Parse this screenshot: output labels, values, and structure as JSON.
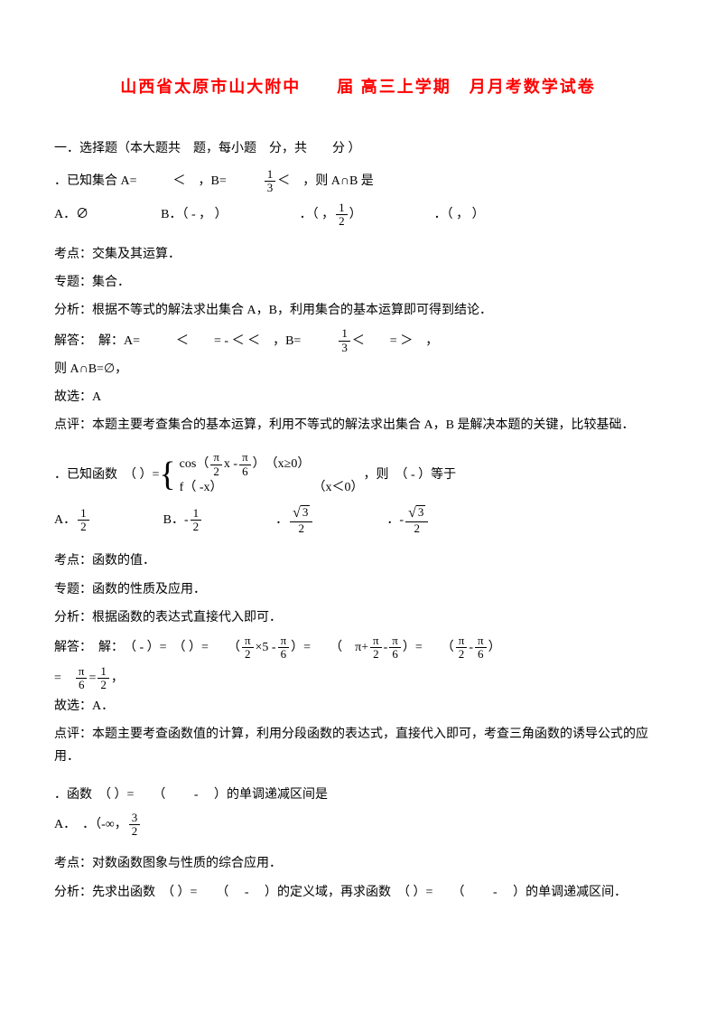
{
  "title": "山西省太原市山大附中　　届 高三上学期　月月考数学试卷",
  "section1_heading": "一．选择题（本大题共　题，每小题　分，共　　分 ）",
  "q1": {
    "stem_prefix": "．已知集合 A=",
    "stem_mid1": "＜　，B=",
    "stem_mid2": "＜　，则 A∩B 是",
    "frac1_num": "1",
    "frac1_den": "3",
    "optA": "A．∅",
    "optB": "B．（ - ， ）",
    "optC_prefix": "．（ ，",
    "optC_suffix": "）",
    "optC_num": "1",
    "optC_den": "2",
    "optD": "．（ ， ）"
  },
  "a1": {
    "l1": "考点：交集及其运算．",
    "l2": "专题：集合．",
    "l3": "分析：根据不等式的解法求出集合 A，B，利用集合的基本运算即可得到结论．",
    "l4_prefix": "解答：　解：A=",
    "l4_mid": "＜　　= - ＜ ＜　，B=",
    "l4_suf": "＜　　= ＞　，",
    "l4_num": "1",
    "l4_den": "3",
    "l5": "则 A∩B=∅，",
    "l6": "故选：A",
    "l7": "点评：本题主要考查集合的基本运算，利用不等式的解法求出集合 A，B 是解决本题的关键，比较基础．"
  },
  "q2": {
    "stem_prefix": "．已知函数　（ ）=",
    "case1_prefix": "cos（",
    "case1_mid": "x -",
    "case1_suf": "）　（x≥0）",
    "pi": "π",
    "two": "2",
    "six": "6",
    "case2": "f（ -x）",
    "case2_cond": "（x＜0）",
    "stem_suffix": "，则　（ - ）等于",
    "optA_num": "1",
    "optA_den": "2",
    "optA": "A．",
    "optB": "B．-",
    "optB_num": "1",
    "optB_den": "2",
    "optC": "．",
    "optC_sqrt": "3",
    "optC_den": "2",
    "optD": "．-",
    "optD_sqrt": "3",
    "optD_den": "2"
  },
  "a2": {
    "l1": "考点：函数的值．",
    "l2": "专题：函数的性质及应用．",
    "l3": "分析：根据函数的表达式直接代入即可．",
    "l4_prefix": "解答：　解：　（ - ）=　（ ）=　　（",
    "l4_mid1": "×5 -",
    "l4_mid2": "）=　　（　π+",
    "l4_mid3": " - ",
    "l4_mid4": "）=　　（",
    "l4_mid5": " - ",
    "l4_suf": "）",
    "pi": "π",
    "two": "2",
    "six": "6",
    "l5_prefix": "=　",
    "l5_num": "π",
    "l5_eq": "=",
    "l5_num2": "1",
    "l5_den": "6",
    "l5_den2": "2",
    "l5_suffix": "，",
    "l6": "故选：A．",
    "l7": "点评：本题主要考查函数值的计算，利用分段函数的表达式，直接代入即可，考查三角函数的诱导公式的应用．"
  },
  "q3": {
    "stem": "．函数　（ ）=　　（　　 - 　）的单调递减区间是",
    "optA_prefix": "A．　．（-∞，",
    "optA_num": "3",
    "optA_den": "2"
  },
  "a3": {
    "l1": "考点：对数函数图象与性质的综合应用．",
    "l2": "分析：先求出函数　（ ）=　　（　 - 　）的定义域，再求函数　（ ）=　　（　　 - 　）的单调递减区间．"
  }
}
